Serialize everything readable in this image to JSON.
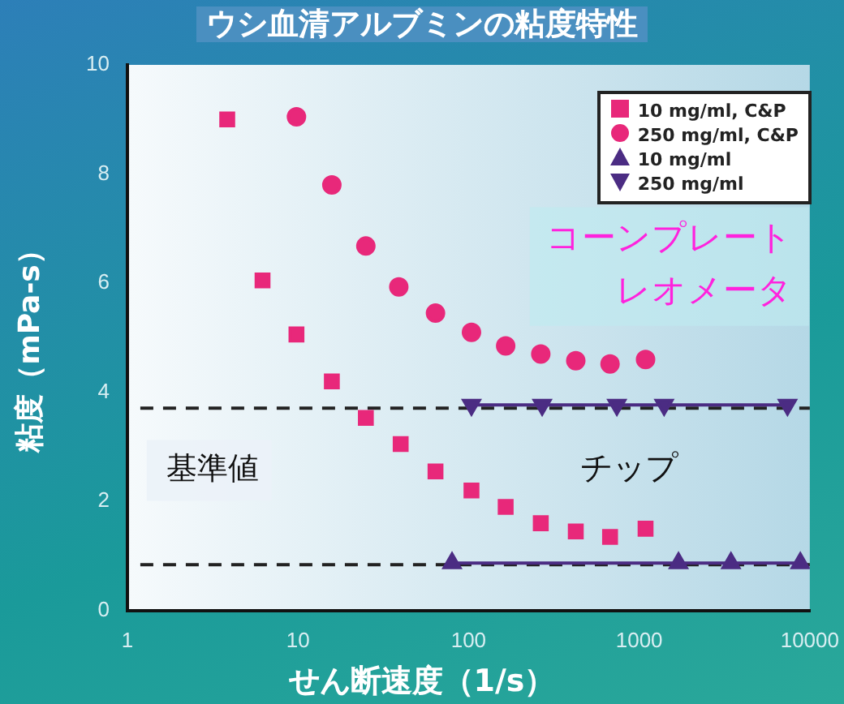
{
  "chart_data": {
    "type": "scatter",
    "title": "ウシ血清アルブミンの粘度特性",
    "xlabel": "せん断速度（1/s）",
    "ylabel": "粘度（mPa-s）",
    "log": "x",
    "xlim": [
      1,
      10000
    ],
    "xticks": [
      1,
      10,
      100,
      1000,
      10000
    ],
    "ylim": [
      0,
      10
    ],
    "yticks": [
      0,
      2,
      4,
      6,
      8,
      10
    ],
    "grid": false,
    "legend": "top right",
    "series": [
      {
        "name": "10 mg/ml, C&P",
        "marker": "square",
        "color": "#e8287a",
        "x": [
          3.85,
          6.2,
          9.8,
          15.8,
          25,
          40,
          64,
          104,
          165,
          265,
          425,
          675,
          1090
        ],
        "values": [
          9.0,
          6.05,
          5.06,
          4.2,
          3.53,
          3.05,
          2.55,
          2.2,
          1.9,
          1.6,
          1.45,
          1.35,
          1.5
        ]
      },
      {
        "name": "250 mg/ml, C&P",
        "marker": "circle",
        "color": "#e8287a",
        "x": [
          9.8,
          15.8,
          25,
          39,
          64,
          104,
          165,
          265,
          425,
          675,
          1090
        ],
        "values": [
          9.05,
          7.8,
          6.68,
          5.93,
          5.45,
          5.1,
          4.85,
          4.7,
          4.58,
          4.52,
          4.6
        ]
      },
      {
        "name": "10 mg/ml",
        "type": "line",
        "marker": "triangle",
        "line_style": "solid",
        "color": "#4b2c83",
        "x": [
          80,
          1700,
          3450,
          8800
        ],
        "values": [
          0.87,
          0.87,
          0.87,
          0.87
        ]
      },
      {
        "name": "250 mg/ml",
        "type": "line",
        "marker": "triangle-down",
        "line_style": "solid",
        "color": "#4b2c83",
        "x": [
          104,
          270,
          740,
          1400,
          7400
        ],
        "values": [
          3.77,
          3.77,
          3.77,
          3.77,
          3.77
        ]
      }
    ],
    "ref_lines": [
      {
        "axis": "y",
        "value": 3.71,
        "color": "#222222",
        "line_style": "dashed"
      },
      {
        "axis": "y",
        "value": 0.84,
        "color": "#222222",
        "line_style": "dashed"
      }
    ],
    "annotations": [
      "コーンプレートレオメータ",
      "基準値",
      "チップ"
    ]
  }
}
